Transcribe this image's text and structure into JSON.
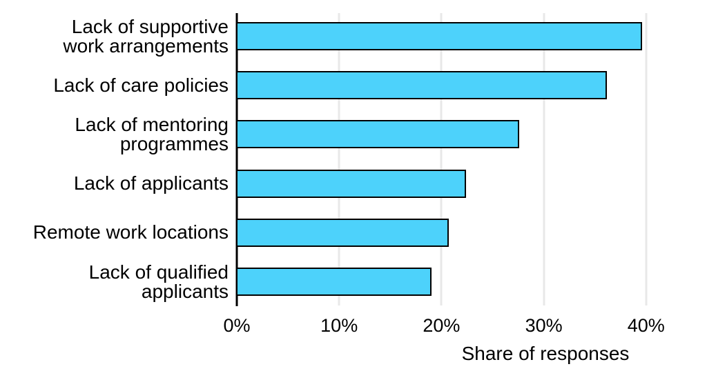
{
  "chart_data": {
    "type": "bar",
    "orientation": "horizontal",
    "title": "",
    "categories": [
      "Lack of supportive work arrangements",
      "Lack of care policies",
      "Lack of mentoring programmes",
      "Lack of applicants",
      "Remote work locations",
      "Lack of qualified applicants"
    ],
    "categories_wrapped": [
      "Lack of supportive\nwork arrangements",
      "Lack of care policies",
      "Lack of mentoring\nprogrammes",
      "Lack of applicants",
      "Remote work locations",
      "Lack of qualified\napplicants"
    ],
    "values": [
      39.6,
      36.2,
      27.6,
      22.4,
      20.7,
      19.0
    ],
    "unit": "%",
    "xlabel": "Share of responses",
    "ylabel": "",
    "x_axis": {
      "ticks": [
        0,
        10,
        20,
        30,
        40
      ],
      "tick_labels": [
        "0%",
        "10%",
        "20%",
        "30%",
        "40%"
      ],
      "min": 0,
      "max": 46
    },
    "grid": "vertical",
    "legend": "none",
    "colors": {
      "bar_fill": "#4dd2fb",
      "bar_border": "#000000",
      "gridline": "#e8e8e8",
      "axis_line": "#000000",
      "text": "#000000",
      "background": "#ffffff"
    }
  }
}
